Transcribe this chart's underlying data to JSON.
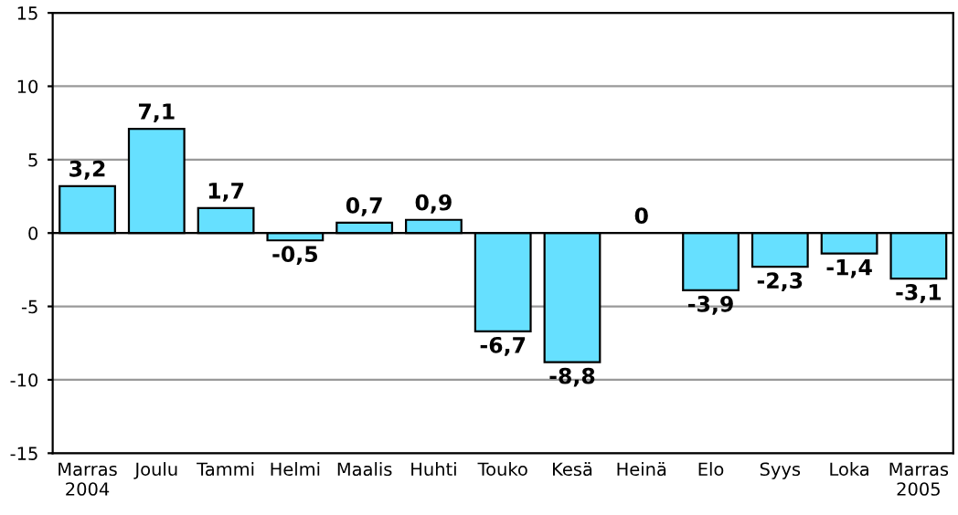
{
  "chart_data": {
    "type": "bar",
    "categories": [
      "Marras\n2004",
      "Joulu",
      "Tammi",
      "Helmi",
      "Maalis",
      "Huhti",
      "Touko",
      "Kesä",
      "Heinä",
      "Elo",
      "Syys",
      "Loka",
      "Marras\n2005"
    ],
    "values": [
      3.2,
      7.1,
      1.7,
      -0.5,
      0.7,
      0.9,
      -6.7,
      -8.8,
      0,
      -3.9,
      -2.3,
      -1.4,
      -3.1
    ],
    "value_labels": [
      "3,2",
      "7,1",
      "1,7",
      "-0,5",
      "0,7",
      "0,9",
      "-6,7",
      "-8,8",
      "0",
      "-3,9",
      "-2,3",
      "-1,4",
      "-3,1"
    ],
    "color": "#66e0ff",
    "ylim": [
      -15,
      15
    ],
    "yticks": [
      -15,
      -10,
      -5,
      0,
      5,
      10,
      15
    ],
    "grid": "y"
  }
}
